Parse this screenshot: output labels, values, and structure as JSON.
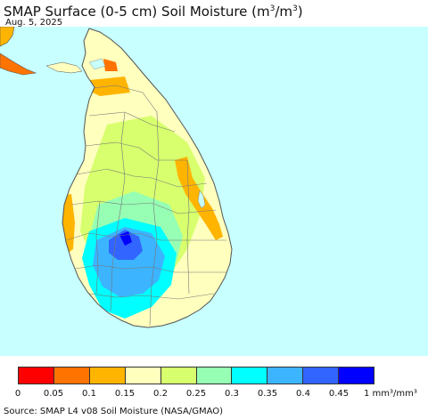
{
  "header": {
    "title_main": "SMAP Surface (0-5 cm) Soil Moisture (m",
    "title_sup1": "3",
    "title_mid": "/m",
    "title_sup2": "3",
    "title_end": ")",
    "date": "Aug. 5, 2025"
  },
  "map": {
    "region": "Sri Lanka",
    "ocean_color": "#c8ffff",
    "border_color": "#6e6e6e"
  },
  "legend": {
    "colors": [
      "#ff0000",
      "#ff7300",
      "#ffb400",
      "#ffffbe",
      "#d7ff6e",
      "#96ffb4",
      "#00ffff",
      "#3cb4ff",
      "#3264ff",
      "#0000ff"
    ],
    "ticks": [
      "0",
      "0.05",
      "0.1",
      "0.15",
      "0.2",
      "0.25",
      "0.3",
      "0.35",
      "0.4",
      "0.45"
    ],
    "last_tick": "1 mm³/mm³"
  },
  "footer": {
    "source": "Source: SMAP L4 v08 Soil Moisture (NASA/GMAO)"
  }
}
